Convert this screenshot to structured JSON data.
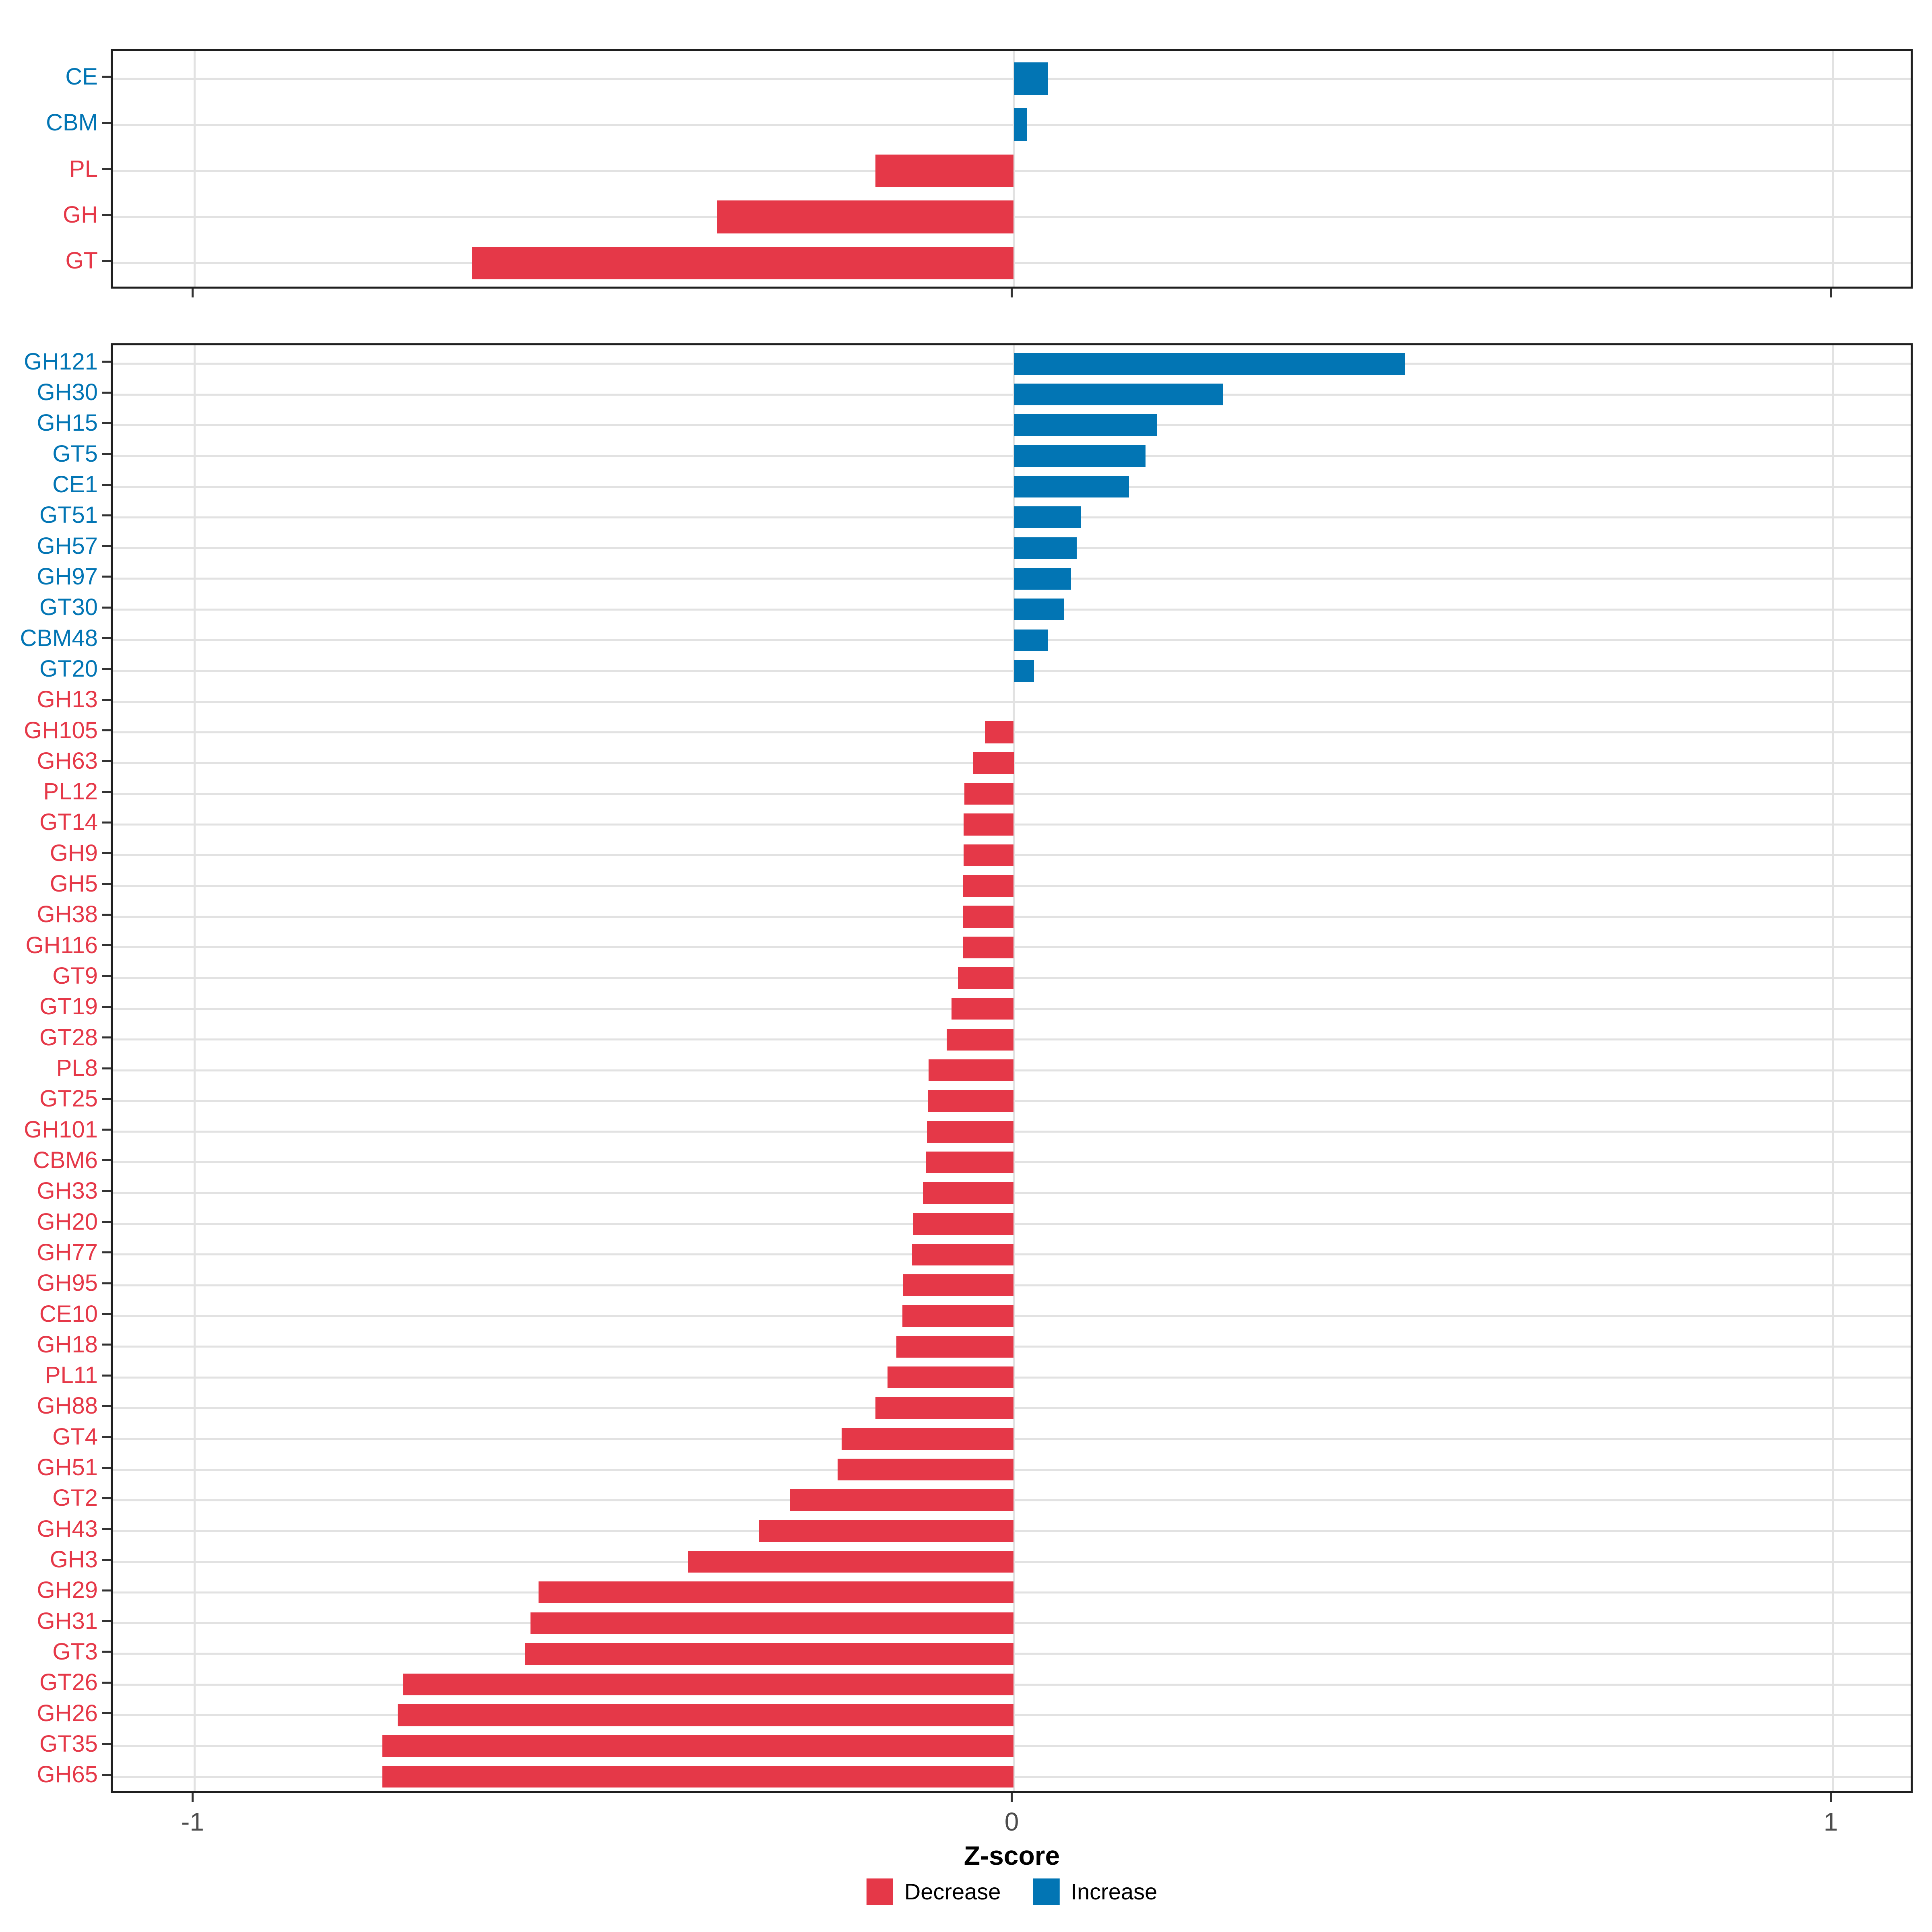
{
  "colors": {
    "decrease": "#E53848",
    "increase": "#0275B4",
    "gridline": "#E2E2E2",
    "panel_border": "#1F1F1F",
    "axis_tick": "#333333",
    "tick_label_text": "#4D4D4D",
    "title_text": "#000000",
    "background": "#FFFFFF"
  },
  "axis": {
    "title": "Z-score",
    "xlim": [
      -1.1,
      1.1
    ],
    "x_breaks": [
      -1,
      0,
      1
    ],
    "x_tick_labels": [
      "-1",
      "0",
      "1"
    ]
  },
  "legend": {
    "position": "bottom",
    "items": [
      {
        "label": "Decrease",
        "color_key": "decrease"
      },
      {
        "label": "Increase",
        "color_key": "increase"
      }
    ]
  },
  "chart_data": [
    {
      "id": "family-panel",
      "type": "bar",
      "orientation": "horizontal",
      "title": "",
      "xlabel": "Z-score",
      "xlim": [
        -1.1,
        1.1
      ],
      "x_breaks": [
        -1,
        0,
        1
      ],
      "grid": true,
      "categories": [
        "CE",
        "CBM",
        "PL",
        "GH",
        "GT"
      ],
      "values": [
        0.042,
        0.016,
        -0.169,
        -0.362,
        -0.661
      ],
      "directions": [
        "increase",
        "increase",
        "decrease",
        "decrease",
        "decrease"
      ]
    },
    {
      "id": "subfamily-panel",
      "type": "bar",
      "orientation": "horizontal",
      "title": "",
      "xlabel": "Z-score",
      "xlim": [
        -1.1,
        1.1
      ],
      "x_breaks": [
        -1,
        0,
        1
      ],
      "grid": true,
      "categories": [
        "GH121",
        "GH30",
        "GH15",
        "GT5",
        "CE1",
        "GT51",
        "GH57",
        "GH97",
        "GT30",
        "CBM48",
        "GT20",
        "GH13",
        "GH105",
        "GH63",
        "PL12",
        "GT14",
        "GH9",
        "GH5",
        "GH38",
        "GH116",
        "GT9",
        "GT19",
        "GT28",
        "PL8",
        "GT25",
        "GH101",
        "CBM6",
        "GH33",
        "GH20",
        "GH77",
        "GH95",
        "CE10",
        "GH18",
        "PL11",
        "GH88",
        "GT4",
        "GH51",
        "GT2",
        "GH43",
        "GH3",
        "GH29",
        "GH31",
        "GT3",
        "GT26",
        "GH26",
        "GT35",
        "GH65"
      ],
      "values": [
        0.478,
        0.256,
        0.175,
        0.161,
        0.141,
        0.082,
        0.077,
        0.07,
        0.061,
        0.042,
        0.025,
        0.0,
        -0.035,
        -0.05,
        -0.06,
        -0.061,
        -0.061,
        -0.062,
        -0.062,
        -0.062,
        -0.068,
        -0.076,
        -0.082,
        -0.104,
        -0.105,
        -0.106,
        -0.107,
        -0.111,
        -0.123,
        -0.124,
        -0.135,
        -0.136,
        -0.143,
        -0.154,
        -0.169,
        -0.21,
        -0.215,
        -0.273,
        -0.311,
        -0.398,
        -0.58,
        -0.59,
        -0.597,
        -0.745,
        -0.752,
        -0.771,
        -0.771
      ],
      "directions": [
        "increase",
        "increase",
        "increase",
        "increase",
        "increase",
        "increase",
        "increase",
        "increase",
        "increase",
        "increase",
        "increase",
        "decrease",
        "decrease",
        "decrease",
        "decrease",
        "decrease",
        "decrease",
        "decrease",
        "decrease",
        "decrease",
        "decrease",
        "decrease",
        "decrease",
        "decrease",
        "decrease",
        "decrease",
        "decrease",
        "decrease",
        "decrease",
        "decrease",
        "decrease",
        "decrease",
        "decrease",
        "decrease",
        "decrease",
        "decrease",
        "decrease",
        "decrease",
        "decrease",
        "decrease",
        "decrease",
        "decrease",
        "decrease",
        "decrease",
        "decrease",
        "decrease",
        "decrease"
      ]
    }
  ]
}
